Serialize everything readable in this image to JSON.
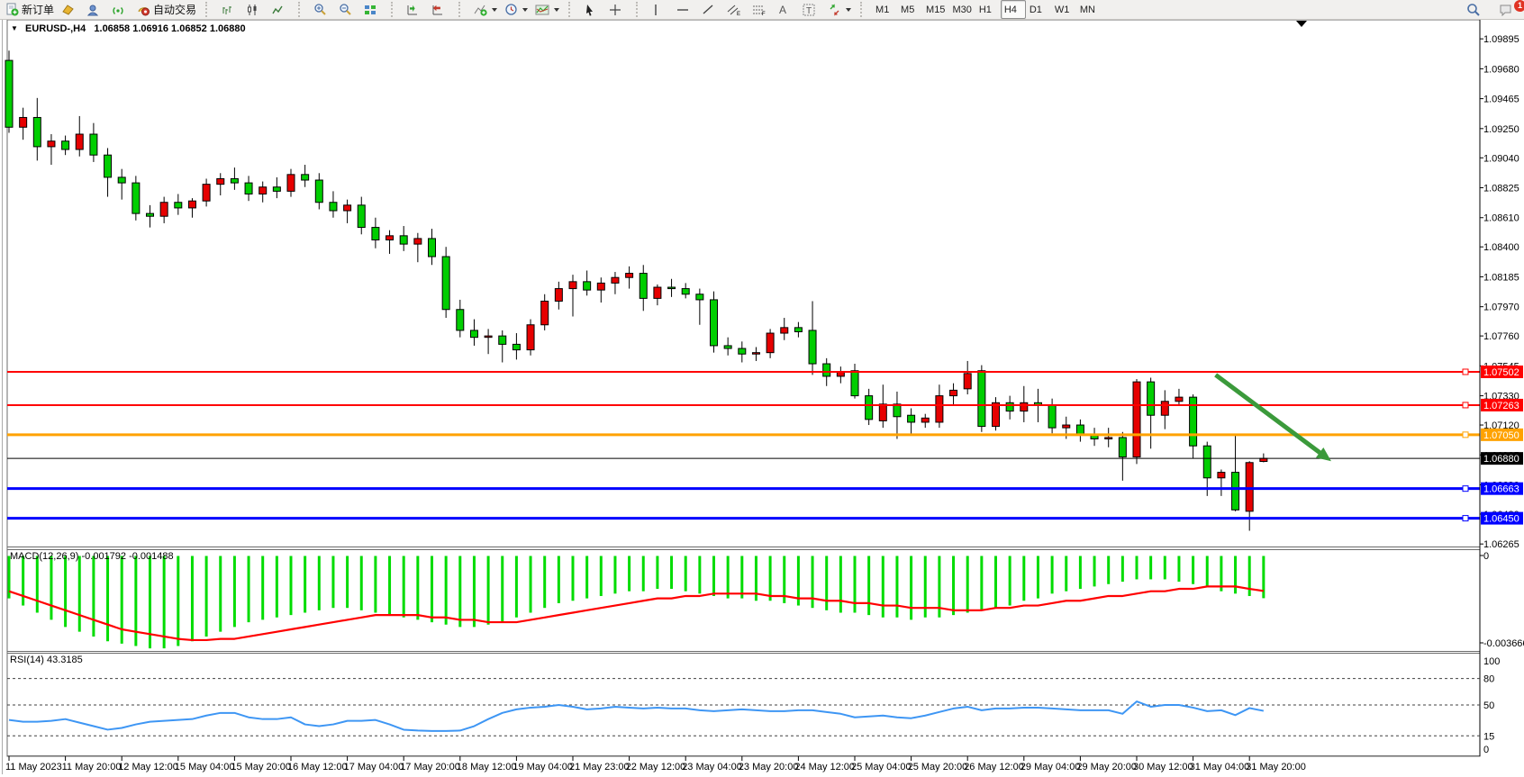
{
  "toolbar": {
    "new_order_label": "新订单",
    "autotrade_label": "自动交易",
    "timeframes": [
      "M1",
      "M5",
      "M15",
      "M30",
      "H1",
      "H4",
      "D1",
      "W1",
      "MN"
    ],
    "active_timeframe": "H4",
    "notification_count": "1"
  },
  "chart": {
    "title": "EURUSD-,H4",
    "ohlc_text": "1.06858 1.06916 1.06852 1.06880"
  },
  "indicators": {
    "macd": {
      "label": "MACD(12,26,9)",
      "value_main": "-0.001792",
      "value_signal": "-0.001488"
    },
    "rsi": {
      "label": "RSI(14)",
      "value": "43.3185"
    }
  },
  "chart_data": {
    "type": "candlestick",
    "symbol": "EURUSD-",
    "timeframe": "H4",
    "ylim": [
      1.062,
      1.0999
    ],
    "grid": false,
    "up_color": "#E60000",
    "down_color": "#00CE00",
    "price_ticks": [
      "1.09895",
      "1.09680",
      "1.09465",
      "1.09250",
      "1.09040",
      "1.08825",
      "1.08610",
      "1.08400",
      "1.08185",
      "1.07970",
      "1.07760",
      "1.07545",
      "1.07330",
      "1.07120",
      "1.06905",
      "1.06690",
      "1.06480",
      "1.06265"
    ],
    "x_labels": [
      "11 May 2023",
      "11 May 20:00",
      "12 May 12:00",
      "15 May 04:00",
      "15 May 20:00",
      "16 May 12:00",
      "17 May 04:00",
      "17 May 20:00",
      "18 May 12:00",
      "19 May 04:00",
      "21 May 23:00",
      "22 May 12:00",
      "23 May 04:00",
      "23 May 20:00",
      "24 May 12:00",
      "25 May 04:00",
      "25 May 20:00",
      "26 May 12:00",
      "29 May 04:00",
      "29 May 20:00",
      "30 May 12:00",
      "31 May 04:00",
      "31 May 20:00"
    ],
    "bars_per_label": 4,
    "candles": [
      [
        1.0974,
        1.0981,
        1.0922,
        1.0926
      ],
      [
        1.0926,
        1.094,
        1.0917,
        1.0933
      ],
      [
        1.0933,
        1.0947,
        1.0902,
        1.0912
      ],
      [
        1.0912,
        1.0921,
        1.0899,
        1.0916
      ],
      [
        1.0916,
        1.092,
        1.0906,
        1.091
      ],
      [
        1.091,
        1.0934,
        1.0905,
        1.0921
      ],
      [
        1.0921,
        1.0929,
        1.0901,
        1.0906
      ],
      [
        1.0906,
        1.0911,
        1.0876,
        1.089
      ],
      [
        1.089,
        1.0896,
        1.0874,
        1.0886
      ],
      [
        1.0886,
        1.0891,
        1.0859,
        1.0864
      ],
      [
        1.0864,
        1.087,
        1.0854,
        1.0862
      ],
      [
        1.0862,
        1.0876,
        1.0857,
        1.0872
      ],
      [
        1.0872,
        1.0878,
        1.0863,
        1.0868
      ],
      [
        1.0868,
        1.0875,
        1.0861,
        1.0873
      ],
      [
        1.0873,
        1.0889,
        1.0869,
        1.0885
      ],
      [
        1.0885,
        1.0893,
        1.0877,
        1.0889
      ],
      [
        1.0889,
        1.0897,
        1.0881,
        1.0886
      ],
      [
        1.0886,
        1.0891,
        1.0873,
        1.0878
      ],
      [
        1.0878,
        1.0887,
        1.0872,
        1.0883
      ],
      [
        1.0883,
        1.089,
        1.0875,
        1.088
      ],
      [
        1.088,
        1.0896,
        1.0876,
        1.0892
      ],
      [
        1.0892,
        1.0899,
        1.0883,
        1.0888
      ],
      [
        1.0888,
        1.0893,
        1.0867,
        1.0872
      ],
      [
        1.0872,
        1.088,
        1.0861,
        1.0866
      ],
      [
        1.0866,
        1.0874,
        1.0857,
        1.087
      ],
      [
        1.087,
        1.0876,
        1.0849,
        1.0854
      ],
      [
        1.0854,
        1.0861,
        1.0839,
        1.0845
      ],
      [
        1.0845,
        1.0852,
        1.0835,
        1.0848
      ],
      [
        1.0848,
        1.0855,
        1.0837,
        1.0842
      ],
      [
        1.0842,
        1.085,
        1.0829,
        1.0846
      ],
      [
        1.0846,
        1.0853,
        1.0827,
        1.0833
      ],
      [
        1.0833,
        1.084,
        1.0789,
        1.0795
      ],
      [
        1.0795,
        1.0802,
        1.0775,
        1.078
      ],
      [
        1.078,
        1.0788,
        1.0769,
        1.0775
      ],
      [
        1.0775,
        1.0781,
        1.0763,
        1.0776
      ],
      [
        1.0776,
        1.078,
        1.0757,
        1.077
      ],
      [
        1.077,
        1.0778,
        1.0759,
        1.0766
      ],
      [
        1.0766,
        1.0788,
        1.0762,
        1.0784
      ],
      [
        1.0784,
        1.0806,
        1.078,
        1.0801
      ],
      [
        1.0801,
        1.0815,
        1.0795,
        1.081
      ],
      [
        1.081,
        1.082,
        1.079,
        1.0815
      ],
      [
        1.0815,
        1.0823,
        1.0805,
        1.0809
      ],
      [
        1.0809,
        1.0818,
        1.08,
        1.0814
      ],
      [
        1.0814,
        1.0822,
        1.0806,
        1.0818
      ],
      [
        1.0818,
        1.0826,
        1.081,
        1.0821
      ],
      [
        1.0821,
        1.0827,
        1.0794,
        1.0803
      ],
      [
        1.0803,
        1.0813,
        1.0798,
        1.0811
      ],
      [
        1.0811,
        1.0817,
        1.0804,
        1.081
      ],
      [
        1.081,
        1.0814,
        1.0803,
        1.0806
      ],
      [
        1.0806,
        1.081,
        1.0784,
        1.0802
      ],
      [
        1.0802,
        1.0808,
        1.0764,
        1.0769
      ],
      [
        1.0769,
        1.0775,
        1.0762,
        1.0767
      ],
      [
        1.0767,
        1.0772,
        1.0757,
        1.0763
      ],
      [
        1.0763,
        1.0768,
        1.0758,
        1.0764
      ],
      [
        1.0764,
        1.0781,
        1.076,
        1.0778
      ],
      [
        1.0778,
        1.0789,
        1.0773,
        1.0782
      ],
      [
        1.0782,
        1.0786,
        1.0775,
        1.0779
      ],
      [
        1.078,
        1.0801,
        1.0748,
        1.0756
      ],
      [
        1.0756,
        1.076,
        1.074,
        1.0747
      ],
      [
        1.0747,
        1.0754,
        1.0742,
        1.075
      ],
      [
        1.0751,
        1.0756,
        1.0731,
        1.0733
      ],
      [
        1.0733,
        1.0738,
        1.0712,
        1.0716
      ],
      [
        1.0715,
        1.0741,
        1.071,
        1.0727
      ],
      [
        1.0727,
        1.0736,
        1.0702,
        1.0718
      ],
      [
        1.0719,
        1.0724,
        1.0705,
        1.0714
      ],
      [
        1.0714,
        1.072,
        1.071,
        1.0717
      ],
      [
        1.0714,
        1.0741,
        1.071,
        1.0733
      ],
      [
        1.0733,
        1.0742,
        1.0726,
        1.0737
      ],
      [
        1.0738,
        1.0758,
        1.0734,
        1.0749
      ],
      [
        1.0751,
        1.0755,
        1.0707,
        1.0711
      ],
      [
        1.0711,
        1.0732,
        1.0708,
        1.0728
      ],
      [
        1.0728,
        1.0733,
        1.0716,
        1.0722
      ],
      [
        1.0722,
        1.074,
        1.0714,
        1.0728
      ],
      [
        1.0728,
        1.0738,
        1.0714,
        1.0726
      ],
      [
        1.0726,
        1.0731,
        1.0706,
        1.071
      ],
      [
        1.071,
        1.0718,
        1.0702,
        1.0712
      ],
      [
        1.0712,
        1.0716,
        1.07,
        1.0705
      ],
      [
        1.0705,
        1.071,
        1.0697,
        1.0702
      ],
      [
        1.0702,
        1.071,
        1.0696,
        1.0703
      ],
      [
        1.0703,
        1.0707,
        1.0672,
        1.0689
      ],
      [
        1.0689,
        1.0745,
        1.0684,
        1.0743
      ],
      [
        1.0743,
        1.0746,
        1.0695,
        1.0719
      ],
      [
        1.0719,
        1.0737,
        1.0709,
        1.0729
      ],
      [
        1.0729,
        1.0738,
        1.0726,
        1.0732
      ],
      [
        1.0732,
        1.0734,
        1.0688,
        1.0697
      ],
      [
        1.0697,
        1.07,
        1.0661,
        1.0674
      ],
      [
        1.0674,
        1.068,
        1.0661,
        1.0678
      ],
      [
        1.0678,
        1.0705,
        1.065,
        1.0651
      ],
      [
        1.065,
        1.0686,
        1.0636,
        1.0685
      ],
      [
        1.06858,
        1.06916,
        1.06852,
        1.0688
      ]
    ],
    "levels": [
      {
        "price": 1.07502,
        "label": "1.07502",
        "color": "#FF0000",
        "width": 2,
        "handle": true
      },
      {
        "price": 1.07263,
        "label": "1.07263",
        "color": "#FF0000",
        "width": 2,
        "handle": true
      },
      {
        "price": 1.0705,
        "label": "1.07050",
        "color": "#FFA200",
        "width": 3,
        "handle": true
      },
      {
        "price": 1.0688,
        "label": "1.06880",
        "color": "#000000",
        "width": 1,
        "handle": false
      },
      {
        "price": 1.06663,
        "label": "1.06663",
        "color": "#0000FF",
        "width": 3,
        "handle": true
      },
      {
        "price": 1.0645,
        "label": "1.06450",
        "color": "#0000FF",
        "width": 3,
        "handle": true
      }
    ],
    "arrow_annotation": {
      "from_bar": 85.6,
      "from_price": 1.0748,
      "to_bar": 93.8,
      "to_price": 1.0686,
      "color": "#3B9A3B"
    },
    "macd": {
      "label": "MACD(12,26,9)",
      "axis_ticks": [
        "0",
        "-0.003666"
      ],
      "ylim": [
        -0.0039,
        0
      ],
      "hist": [
        -0.0018,
        -0.0021,
        -0.0024,
        -0.0027,
        -0.003,
        -0.0032,
        -0.0034,
        -0.0036,
        -0.0037,
        -0.0038,
        -0.0039,
        -0.0039,
        -0.0038,
        -0.0036,
        -0.0034,
        -0.0032,
        -0.003,
        -0.0028,
        -0.0027,
        -0.0026,
        -0.0025,
        -0.0024,
        -0.0023,
        -0.0022,
        -0.0022,
        -0.0023,
        -0.0024,
        -0.0025,
        -0.0026,
        -0.0027,
        -0.0028,
        -0.0029,
        -0.003,
        -0.003,
        -0.0029,
        -0.0028,
        -0.0026,
        -0.0024,
        -0.0022,
        -0.002,
        -0.0019,
        -0.0018,
        -0.0017,
        -0.0016,
        -0.0015,
        -0.0015,
        -0.0014,
        -0.0014,
        -0.0015,
        -0.0016,
        -0.0017,
        -0.0018,
        -0.0018,
        -0.0019,
        -0.0019,
        -0.002,
        -0.0021,
        -0.0022,
        -0.0023,
        -0.0024,
        -0.0024,
        -0.0025,
        -0.0026,
        -0.0026,
        -0.0027,
        -0.0026,
        -0.0026,
        -0.0025,
        -0.0024,
        -0.0023,
        -0.0022,
        -0.0021,
        -0.0019,
        -0.0018,
        -0.0016,
        -0.0015,
        -0.0014,
        -0.0013,
        -0.0012,
        -0.0011,
        -0.001,
        -0.001,
        -0.001,
        -0.0011,
        -0.0012,
        -0.0013,
        -0.0015,
        -0.0016,
        -0.0017,
        -0.001792
      ],
      "signal": [
        -0.0015,
        -0.0017,
        -0.0019,
        -0.0021,
        -0.0023,
        -0.0025,
        -0.0027,
        -0.0029,
        -0.0031,
        -0.0032,
        -0.0033,
        -0.0034,
        -0.0035,
        -0.00355,
        -0.00355,
        -0.0035,
        -0.0035,
        -0.0034,
        -0.0033,
        -0.0032,
        -0.0031,
        -0.003,
        -0.0029,
        -0.0028,
        -0.0027,
        -0.0026,
        -0.0025,
        -0.0025,
        -0.0025,
        -0.0025,
        -0.0026,
        -0.0026,
        -0.0027,
        -0.0027,
        -0.0028,
        -0.0028,
        -0.0028,
        -0.0027,
        -0.0026,
        -0.0025,
        -0.0024,
        -0.0023,
        -0.0022,
        -0.0021,
        -0.002,
        -0.0019,
        -0.0018,
        -0.0018,
        -0.0017,
        -0.0017,
        -0.0016,
        -0.0016,
        -0.0016,
        -0.0016,
        -0.0017,
        -0.0017,
        -0.0018,
        -0.0018,
        -0.0019,
        -0.0019,
        -0.002,
        -0.002,
        -0.0021,
        -0.0021,
        -0.0022,
        -0.0022,
        -0.0022,
        -0.0023,
        -0.0023,
        -0.0023,
        -0.0022,
        -0.0022,
        -0.0021,
        -0.0021,
        -0.002,
        -0.0019,
        -0.0019,
        -0.0018,
        -0.0017,
        -0.0017,
        -0.0016,
        -0.0015,
        -0.0015,
        -0.0014,
        -0.0014,
        -0.0013,
        -0.0013,
        -0.0013,
        -0.0014,
        -0.001488
      ]
    },
    "rsi": {
      "label": "RSI(14)",
      "axis_ticks": [
        "100",
        "80",
        "50",
        "15",
        "0"
      ],
      "levels": [
        80,
        50,
        15
      ],
      "values": [
        33,
        31,
        31,
        32,
        34,
        30,
        26,
        22,
        24,
        28,
        31,
        32,
        33,
        34,
        38,
        41,
        41,
        36,
        34,
        34,
        36,
        28,
        26,
        28,
        32,
        32,
        33,
        28,
        22,
        21,
        20.5,
        20.5,
        21,
        26,
        34,
        41,
        45,
        47,
        48,
        50,
        48,
        45,
        46,
        48,
        47,
        46,
        47,
        46,
        46,
        44,
        43,
        44,
        45,
        44,
        43,
        43,
        44,
        44,
        42,
        40,
        36,
        37,
        38,
        36,
        35,
        38,
        42,
        46,
        48,
        44,
        46,
        46,
        47,
        47,
        46,
        45,
        44,
        44,
        44,
        40,
        54,
        48,
        50,
        50,
        47,
        43,
        44,
        38.5,
        46.5,
        43.3
      ]
    }
  }
}
